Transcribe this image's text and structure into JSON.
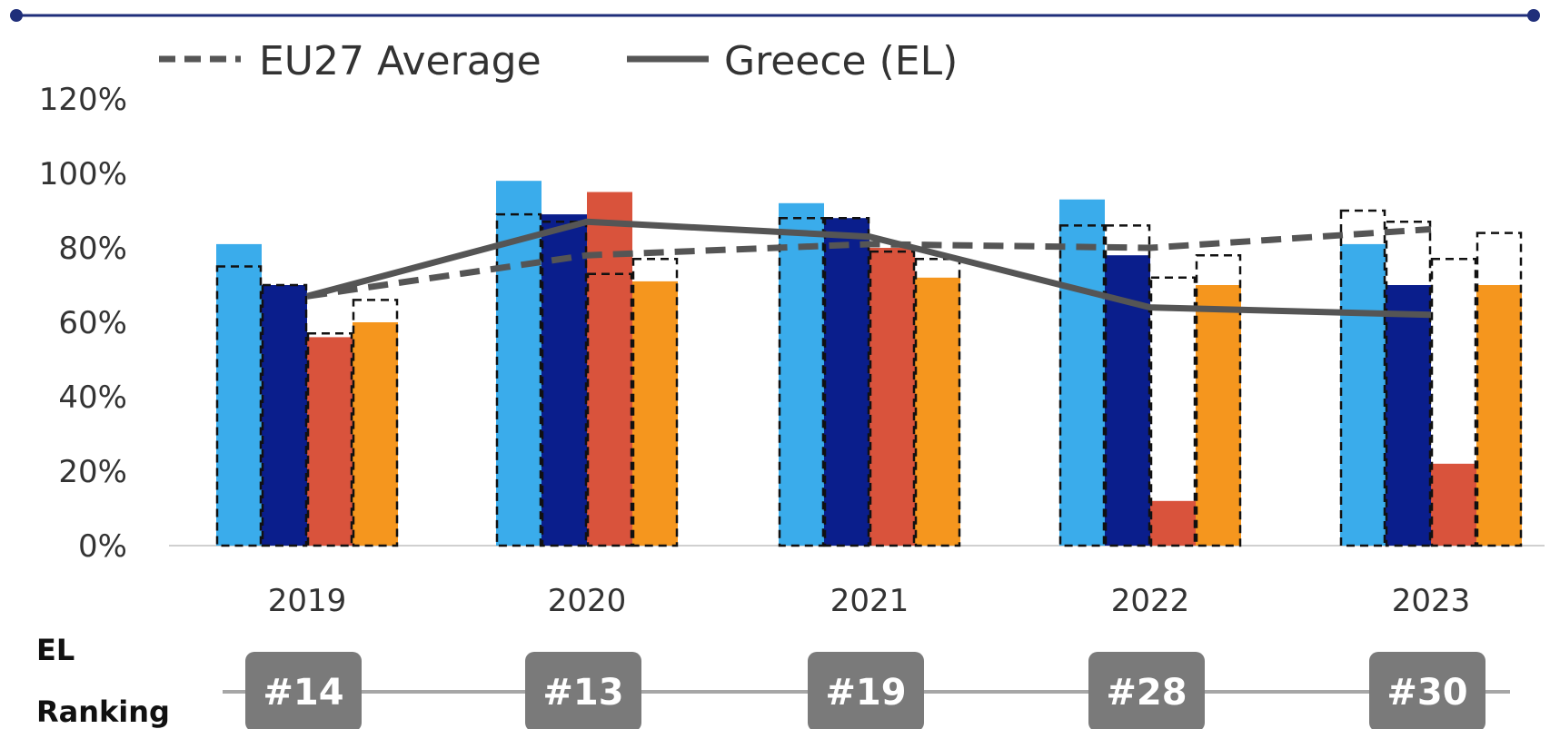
{
  "chart_data": {
    "type": "bar",
    "categories": [
      "2019",
      "2020",
      "2021",
      "2022",
      "2023"
    ],
    "series": [
      {
        "color": "#3AACEB",
        "values": [
          81,
          98,
          92,
          93,
          81
        ],
        "eu27_values": [
          75,
          89,
          88,
          86,
          90
        ]
      },
      {
        "color": "#0A1E8C",
        "values": [
          70,
          89,
          88,
          78,
          70
        ],
        "eu27_values": [
          70,
          87,
          88,
          86,
          87
        ]
      },
      {
        "color": "#D9533C",
        "values": [
          56,
          95,
          80,
          12,
          22
        ],
        "eu27_values": [
          57,
          73,
          79,
          72,
          77
        ]
      },
      {
        "color": "#F5961E",
        "values": [
          60,
          71,
          72,
          70,
          70
        ],
        "eu27_values": [
          66,
          77,
          77,
          78,
          84
        ]
      }
    ],
    "lines": [
      {
        "name": "EU27 Average",
        "style": "dashed",
        "color": "#555555",
        "values": [
          67,
          78,
          81,
          80,
          85
        ]
      },
      {
        "name": "Greece (EL)",
        "style": "solid",
        "color": "#555555",
        "values": [
          67,
          87,
          83,
          64,
          62
        ]
      }
    ],
    "y_ticks": [
      "0%",
      "20%",
      "40%",
      "60%",
      "80%",
      "100%",
      "120%"
    ],
    "ylim": [
      0,
      120
    ],
    "xlabel": "",
    "ylabel": "",
    "grid": false,
    "legend_position": "top"
  },
  "legend": {
    "eu27_label": "EU27 Average",
    "greece_label": "Greece (EL)"
  },
  "ranking": {
    "title_line1": "EL",
    "title_line2": "Ranking",
    "ranks": [
      "#14",
      "#13",
      "#19",
      "#28",
      "#30"
    ],
    "badge_color": "#7A7A7A",
    "line_color": "#A6A6A6"
  },
  "frame": {
    "top_line_color": "#1F2E7A"
  }
}
